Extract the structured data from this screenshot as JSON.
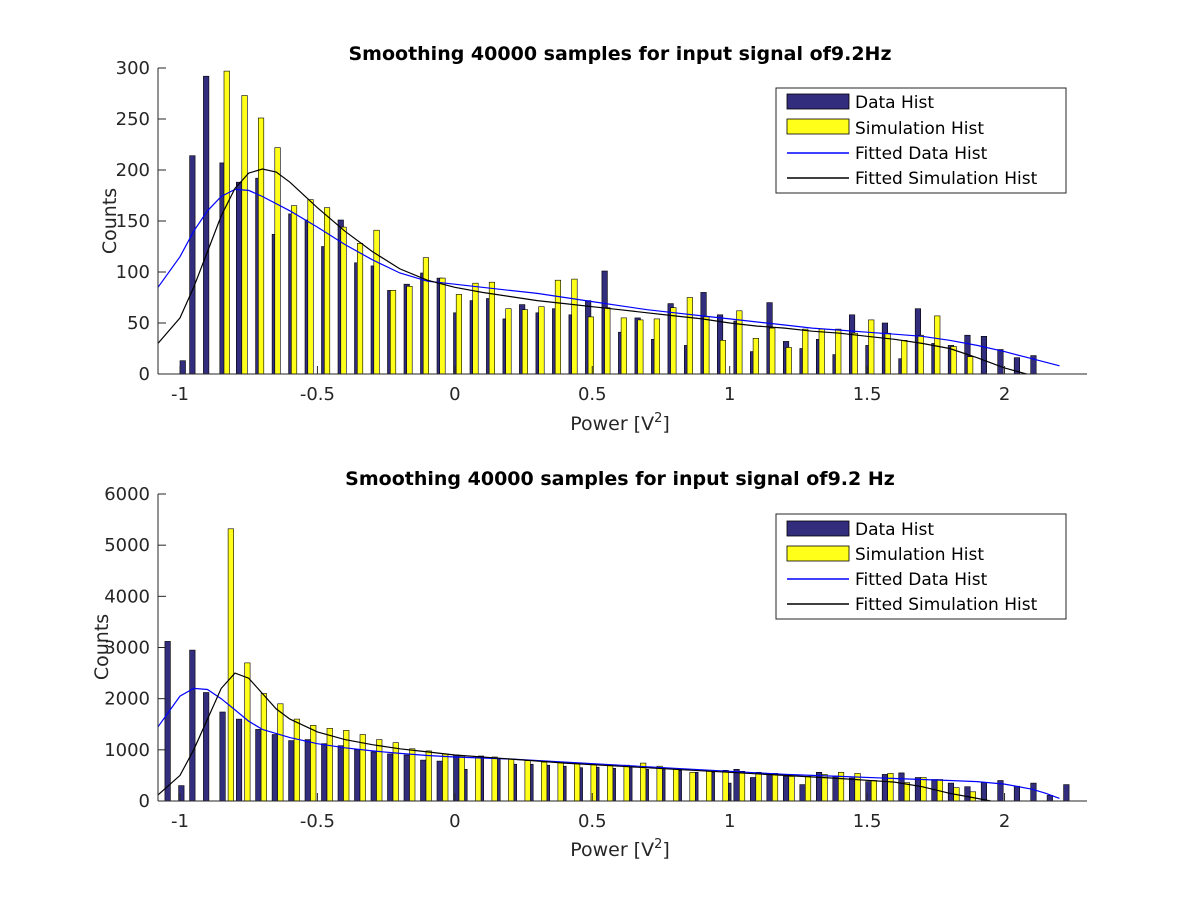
{
  "colors": {
    "data_bar": "#322d7c",
    "sim_bar": "#ffff1a",
    "fit_data": "#0000ff",
    "fit_sim": "#000000",
    "axis": "#262626"
  },
  "chart_data": [
    {
      "type": "bar",
      "title": "Smoothing 40000 samples for input signal of9.2Hz",
      "xlabel": "Power [V",
      "xlabel_sup": "2",
      "xlabel_end": "]",
      "ylabel": "Counts",
      "xlim": [
        -1.08,
        2.3
      ],
      "ylim": [
        0,
        300
      ],
      "xticks": [
        -1,
        -0.5,
        0,
        0.5,
        1,
        1.5,
        2
      ],
      "xtick_labels": [
        "-1",
        "-0.5",
        "0",
        "0.5",
        "1",
        "1.5",
        "2"
      ],
      "yticks": [
        0,
        50,
        100,
        150,
        200,
        250,
        300
      ],
      "ytick_labels": [
        "0",
        "50",
        "100",
        "150",
        "200",
        "250",
        "300"
      ],
      "legend": {
        "location": "top-right",
        "entries": [
          "Data Hist",
          "Simulation Hist",
          "Fitted Data Hist",
          "Fitted Simulation Hist"
        ]
      },
      "bar_width": 0.02,
      "data_hist": {
        "name": "Data Hist",
        "x": [
          -0.99,
          -0.955,
          -0.905,
          -0.845,
          -0.785,
          -0.715,
          -0.655,
          -0.595,
          -0.535,
          -0.475,
          -0.415,
          -0.355,
          -0.295,
          -0.235,
          -0.175,
          -0.115,
          -0.055,
          0.005,
          0.065,
          0.125,
          0.185,
          0.245,
          0.305,
          0.365,
          0.425,
          0.485,
          0.545,
          0.605,
          0.665,
          0.725,
          0.785,
          0.845,
          0.905,
          0.965,
          1.025,
          1.085,
          1.145,
          1.205,
          1.265,
          1.325,
          1.385,
          1.445,
          1.505,
          1.565,
          1.625,
          1.685,
          1.745,
          1.805,
          1.865,
          1.925,
          1.985,
          2.045,
          2.105
        ],
        "values": [
          13,
          214,
          292,
          207,
          188,
          192,
          137,
          157,
          151,
          125,
          151,
          109,
          106,
          82,
          88,
          99,
          94,
          60,
          72,
          74,
          54,
          68,
          60,
          64,
          58,
          72,
          101,
          41,
          55,
          34,
          69,
          28,
          80,
          58,
          52,
          22,
          70,
          32,
          25,
          34,
          19,
          58,
          28,
          50,
          15,
          64,
          30,
          28,
          38,
          37,
          24,
          16,
          18
        ]
      },
      "sim_hist": {
        "name": "Simulation Hist",
        "x": [
          -0.83,
          -0.765,
          -0.705,
          -0.645,
          -0.585,
          -0.525,
          -0.465,
          -0.405,
          -0.345,
          -0.285,
          -0.225,
          -0.165,
          -0.105,
          -0.045,
          0.015,
          0.075,
          0.135,
          0.195,
          0.255,
          0.315,
          0.375,
          0.435,
          0.495,
          0.555,
          0.615,
          0.675,
          0.735,
          0.795,
          0.855,
          0.915,
          0.975,
          1.035,
          1.095,
          1.155,
          1.215,
          1.275,
          1.335,
          1.395,
          1.455,
          1.515,
          1.575,
          1.635,
          1.695,
          1.755,
          1.815,
          1.875
        ],
        "values": [
          297,
          273,
          251,
          222,
          165,
          171,
          163,
          144,
          128,
          141,
          82,
          86,
          114,
          94,
          78,
          89,
          90,
          64,
          63,
          66,
          92,
          93,
          56,
          65,
          55,
          53,
          54,
          65,
          75,
          56,
          33,
          62,
          35,
          45,
          26,
          44,
          44,
          44,
          40,
          53,
          40,
          33,
          38,
          57,
          27,
          17
        ]
      },
      "fit_data": {
        "name": "Fitted Data Hist",
        "x": [
          -1.08,
          -1.0,
          -0.95,
          -0.9,
          -0.85,
          -0.8,
          -0.75,
          -0.7,
          -0.6,
          -0.5,
          -0.4,
          -0.3,
          -0.2,
          -0.1,
          0.0,
          0.1,
          0.2,
          0.3,
          0.4,
          0.5,
          0.6,
          0.7,
          0.8,
          0.9,
          1.0,
          1.1,
          1.2,
          1.3,
          1.4,
          1.5,
          1.6,
          1.7,
          1.8,
          1.9,
          2.0,
          2.1,
          2.2
        ],
        "values": [
          85,
          115,
          140,
          160,
          174,
          181,
          180,
          174,
          160,
          144,
          127,
          112,
          99,
          91,
          88,
          85,
          82,
          79,
          75,
          71,
          67,
          63,
          60,
          57,
          54,
          51,
          48,
          45,
          43,
          41,
          39,
          37,
          33,
          28,
          22,
          15,
          8
        ]
      },
      "fit_sim": {
        "name": "Fitted Simulation Hist",
        "x": [
          -1.08,
          -1.0,
          -0.95,
          -0.9,
          -0.85,
          -0.8,
          -0.75,
          -0.7,
          -0.65,
          -0.6,
          -0.5,
          -0.4,
          -0.3,
          -0.2,
          -0.1,
          0.0,
          0.1,
          0.2,
          0.3,
          0.4,
          0.5,
          0.6,
          0.7,
          0.8,
          0.9,
          1.0,
          1.1,
          1.2,
          1.3,
          1.4,
          1.5,
          1.6,
          1.7,
          1.8,
          1.9,
          2.0,
          2.08
        ],
        "values": [
          30,
          55,
          85,
          120,
          155,
          182,
          197,
          201,
          198,
          188,
          163,
          140,
          120,
          103,
          92,
          85,
          80,
          76,
          72,
          69,
          66,
          63,
          60,
          57,
          54,
          50,
          47,
          45,
          42,
          40,
          37,
          34,
          30,
          25,
          16,
          6,
          0
        ]
      }
    },
    {
      "type": "bar",
      "title": "Smoothing 40000 samples for input signal of9.2 Hz",
      "xlabel": "Power [V",
      "xlabel_sup": "2",
      "xlabel_end": "]",
      "ylabel": "Counts",
      "xlim": [
        -1.08,
        2.3
      ],
      "ylim": [
        0,
        6000
      ],
      "xticks": [
        -1,
        -0.5,
        0,
        0.5,
        1,
        1.5,
        2
      ],
      "xtick_labels": [
        "-1",
        "-0.5",
        "0",
        "0.5",
        "1",
        "1.5",
        "2"
      ],
      "yticks": [
        0,
        1000,
        2000,
        3000,
        4000,
        5000,
        6000
      ],
      "ytick_labels": [
        "0",
        "1000",
        "2000",
        "3000",
        "4000",
        "5000",
        "6000"
      ],
      "legend": {
        "location": "top-right",
        "entries": [
          "Data Hist",
          "Simulation Hist",
          "Fitted Data Hist",
          "Fitted Simulation Hist"
        ]
      },
      "bar_width": 0.02,
      "data_hist": {
        "name": "Data Hist",
        "x": [
          -1.045,
          -0.995,
          -0.955,
          -0.905,
          -0.845,
          -0.785,
          -0.715,
          -0.655,
          -0.595,
          -0.535,
          -0.475,
          -0.415,
          -0.355,
          -0.295,
          -0.235,
          -0.175,
          -0.115,
          -0.055,
          0.005,
          0.035,
          0.095,
          0.155,
          0.215,
          0.275,
          0.335,
          0.395,
          0.455,
          0.515,
          0.575,
          0.635,
          0.695,
          0.755,
          0.815,
          0.875,
          0.935,
          0.995,
          1.025,
          1.085,
          1.145,
          1.205,
          1.265,
          1.325,
          1.385,
          1.445,
          1.505,
          1.565,
          1.625,
          1.685,
          1.745,
          1.805,
          1.865,
          1.925,
          1.985,
          2.045,
          2.105,
          2.165,
          2.225
        ],
        "values": [
          3120,
          300,
          2950,
          2120,
          1740,
          1600,
          1400,
          1300,
          1180,
          1200,
          1120,
          1080,
          1000,
          960,
          920,
          900,
          800,
          780,
          900,
          620,
          880,
          820,
          720,
          720,
          700,
          680,
          650,
          660,
          640,
          660,
          620,
          650,
          600,
          560,
          560,
          350,
          620,
          460,
          520,
          480,
          320,
          560,
          490,
          450,
          380,
          520,
          550,
          460,
          420,
          350,
          280,
          360,
          400,
          290,
          350,
          110,
          320
        ]
      },
      "sim_hist": {
        "name": "Simulation Hist",
        "x": [
          -0.815,
          -0.755,
          -0.695,
          -0.635,
          -0.575,
          -0.515,
          -0.455,
          -0.395,
          -0.335,
          -0.275,
          -0.215,
          -0.155,
          -0.095,
          -0.035,
          0.025,
          0.085,
          0.145,
          0.205,
          0.265,
          0.325,
          0.385,
          0.445,
          0.505,
          0.565,
          0.625,
          0.685,
          0.745,
          0.805,
          0.865,
          0.925,
          0.985,
          1.045,
          1.105,
          1.165,
          1.225,
          1.285,
          1.345,
          1.405,
          1.465,
          1.525,
          1.585,
          1.645,
          1.705,
          1.765,
          1.825,
          1.885
        ],
        "values": [
          5320,
          2700,
          2100,
          1900,
          1600,
          1480,
          1420,
          1380,
          1300,
          1200,
          1140,
          1020,
          980,
          920,
          880,
          860,
          860,
          820,
          790,
          760,
          760,
          740,
          720,
          700,
          700,
          740,
          680,
          640,
          560,
          580,
          600,
          580,
          560,
          540,
          480,
          480,
          520,
          560,
          540,
          400,
          540,
          360,
          460,
          420,
          260,
          180
        ]
      },
      "fit_data": {
        "name": "Fitted Data Hist",
        "x": [
          -1.08,
          -1.0,
          -0.95,
          -0.9,
          -0.85,
          -0.8,
          -0.75,
          -0.7,
          -0.6,
          -0.5,
          -0.4,
          -0.3,
          -0.2,
          -0.1,
          0.0,
          0.2,
          0.4,
          0.6,
          0.8,
          1.0,
          1.2,
          1.4,
          1.6,
          1.8,
          1.9,
          2.0,
          2.1,
          2.15,
          2.2
        ],
        "values": [
          1450,
          2050,
          2200,
          2180,
          2000,
          1780,
          1560,
          1400,
          1240,
          1120,
          1040,
          980,
          930,
          890,
          860,
          820,
          760,
          700,
          640,
          580,
          520,
          480,
          440,
          400,
          380,
          330,
          230,
          150,
          50
        ]
      },
      "fit_sim": {
        "name": "Fitted Simulation Hist",
        "x": [
          -1.08,
          -1.0,
          -0.95,
          -0.9,
          -0.85,
          -0.8,
          -0.75,
          -0.7,
          -0.65,
          -0.6,
          -0.5,
          -0.4,
          -0.3,
          -0.2,
          -0.1,
          0.0,
          0.2,
          0.4,
          0.6,
          0.8,
          1.0,
          1.2,
          1.4,
          1.6,
          1.7,
          1.8,
          1.9,
          1.95
        ],
        "values": [
          120,
          500,
          1000,
          1600,
          2200,
          2500,
          2400,
          2100,
          1800,
          1600,
          1350,
          1200,
          1100,
          1020,
          960,
          900,
          820,
          740,
          680,
          620,
          560,
          500,
          440,
          370,
          280,
          150,
          50,
          0
        ]
      }
    }
  ]
}
